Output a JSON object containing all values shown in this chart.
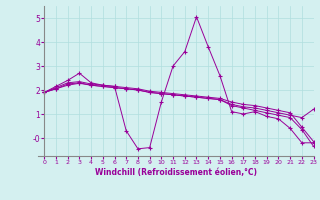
{
  "xlabel": "Windchill (Refroidissement éolien,°C)",
  "background_color": "#d4f0f0",
  "line_color": "#990099",
  "marker": "+",
  "xlim": [
    -0.5,
    23
  ],
  "ylim": [
    -0.75,
    5.5
  ],
  "yticks": [
    0,
    1,
    2,
    3,
    4,
    5
  ],
  "ytick_labels": [
    "-0",
    "1",
    "2",
    "3",
    "4",
    "5"
  ],
  "xticks": [
    0,
    1,
    2,
    3,
    4,
    5,
    6,
    7,
    8,
    9,
    10,
    11,
    12,
    13,
    14,
    15,
    16,
    17,
    18,
    19,
    20,
    21,
    22,
    23
  ],
  "series": [
    [
      1.9,
      2.15,
      2.4,
      2.7,
      2.3,
      2.2,
      2.15,
      0.3,
      -0.45,
      -0.4,
      1.5,
      3.0,
      3.6,
      5.05,
      3.8,
      2.6,
      1.1,
      1.0,
      1.1,
      0.9,
      0.8,
      0.4,
      -0.2,
      -0.2
    ],
    [
      1.9,
      2.1,
      2.3,
      2.35,
      2.25,
      2.2,
      2.15,
      2.1,
      2.05,
      1.95,
      1.9,
      1.85,
      1.8,
      1.75,
      1.7,
      1.65,
      1.5,
      1.4,
      1.35,
      1.25,
      1.15,
      1.05,
      0.45,
      -0.15
    ],
    [
      1.9,
      2.05,
      2.25,
      2.3,
      2.2,
      2.15,
      2.1,
      2.05,
      2.0,
      1.9,
      1.85,
      1.8,
      1.75,
      1.7,
      1.65,
      1.6,
      1.4,
      1.3,
      1.25,
      1.15,
      1.05,
      0.95,
      0.85,
      1.2
    ],
    [
      1.9,
      2.05,
      2.2,
      2.28,
      2.2,
      2.15,
      2.1,
      2.05,
      2.0,
      1.9,
      1.85,
      1.8,
      1.75,
      1.7,
      1.65,
      1.6,
      1.35,
      1.25,
      1.15,
      1.05,
      0.95,
      0.85,
      0.35,
      -0.35
    ]
  ],
  "grid_color": "#b0dede",
  "spine_color": "#888888"
}
